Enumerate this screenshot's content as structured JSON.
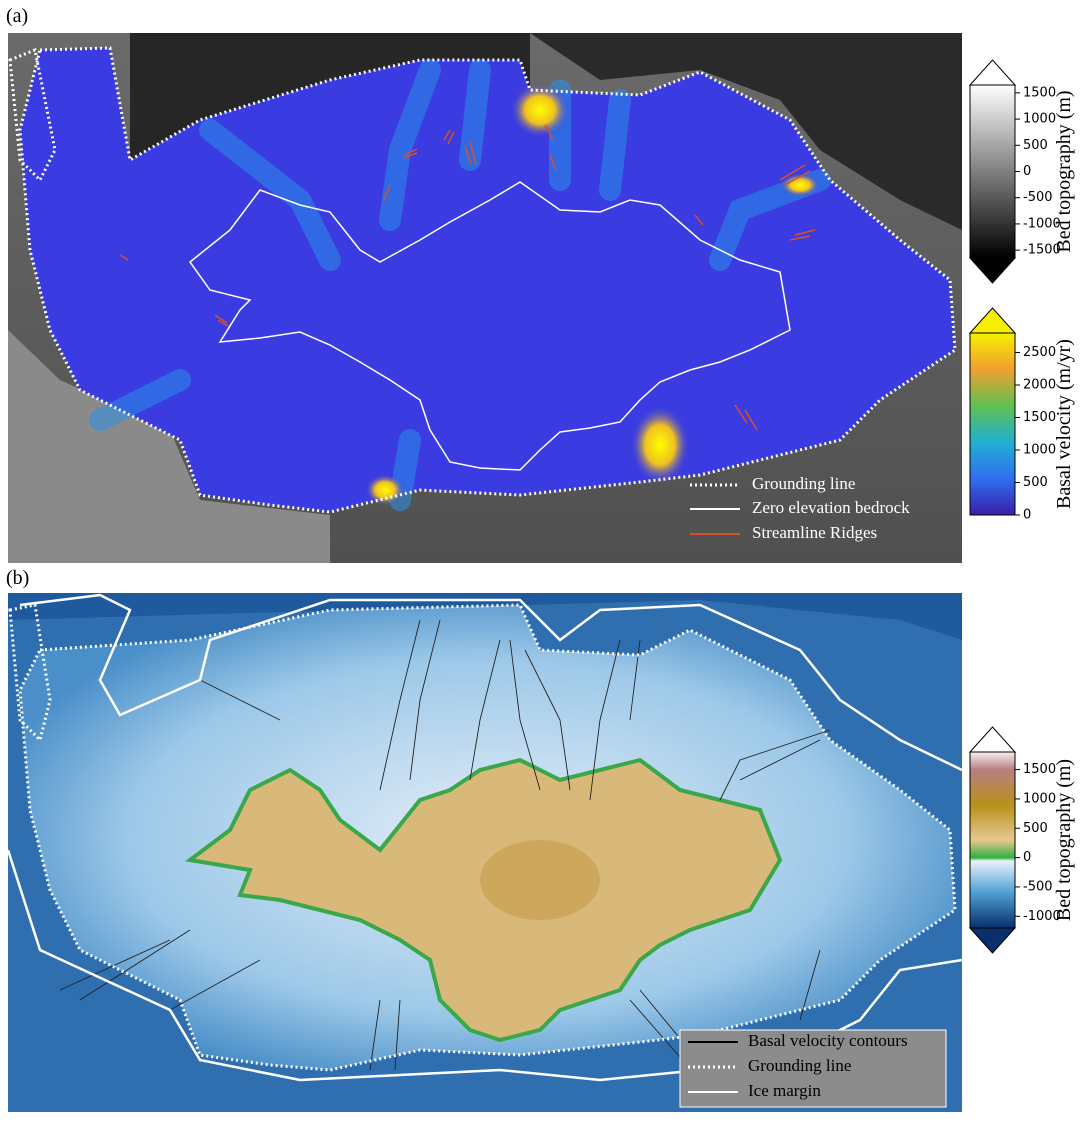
{
  "panels": [
    {
      "label": "(a)",
      "legend": [
        "Grounding line",
        "Zero elevation bedrock",
        "Streamline Ridges"
      ],
      "colorbars": [
        {
          "label": "Bed topography (m)",
          "lim": [
            -1650,
            1650
          ],
          "ticks": [
            1500,
            1000,
            500,
            0,
            -500,
            -1000,
            -1500
          ]
        },
        {
          "label": "Basal velocity (m/yr)",
          "lim": [
            0,
            2800
          ],
          "ticks": [
            2500,
            2000,
            1500,
            1000,
            500,
            0
          ]
        }
      ]
    },
    {
      "label": "(b)",
      "legend": [
        "Basal velocity contours",
        "Grounding line",
        "Ice margin"
      ],
      "colorbars": [
        {
          "label": "Bed topography (m)",
          "lim": [
            -1200,
            1800
          ],
          "ticks": [
            1500,
            1000,
            500,
            0,
            -500,
            -1000
          ]
        }
      ]
    }
  ]
}
